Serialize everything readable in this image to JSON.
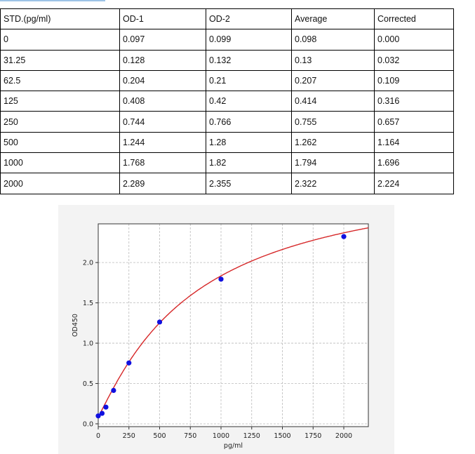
{
  "table": {
    "headers": [
      "STD.(pg/ml)",
      "OD-1",
      "OD-2",
      "Average",
      "Corrected"
    ],
    "rows": [
      [
        "0",
        "0.097",
        "0.099",
        "0.098",
        "0.000"
      ],
      [
        "31.25",
        "0.128",
        "0.132",
        "0.13",
        "0.032"
      ],
      [
        "62.5",
        "0.204",
        "0.21",
        "0.207",
        "0.109"
      ],
      [
        "125",
        "0.408",
        "0.42",
        "0.414",
        "0.316"
      ],
      [
        "250",
        "0.744",
        "0.766",
        "0.755",
        "0.657"
      ],
      [
        "500",
        "1.244",
        "1.28",
        "1.262",
        "1.164"
      ],
      [
        "1000",
        "1.768",
        "1.82",
        "1.794",
        "1.696"
      ],
      [
        "2000",
        "2.289",
        "2.355",
        "2.322",
        "2.224"
      ]
    ]
  },
  "chart_data": {
    "type": "scatter",
    "title": "",
    "xlabel": "pg/ml",
    "ylabel": "OD450",
    "xlim": [
      0,
      2200
    ],
    "ylim": [
      -0.035,
      2.48
    ],
    "xticks": [
      "0",
      "250",
      "500",
      "750",
      "1000",
      "1250",
      "1500",
      "1750",
      "2000"
    ],
    "yticks": [
      "0.0",
      "0.5",
      "1.0",
      "1.5",
      "2.0"
    ],
    "grid": true,
    "points": {
      "x": [
        0,
        31.25,
        62.5,
        125,
        250,
        500,
        1000,
        2000
      ],
      "y": [
        0.098,
        0.13,
        0.207,
        0.414,
        0.755,
        1.262,
        1.794,
        2.322
      ],
      "color": "#1010e0"
    },
    "fit_curve": {
      "model": "4PL",
      "a": 0.09,
      "b": 1.1,
      "c": 800,
      "d": 3.2,
      "color": "#d62728"
    }
  }
}
